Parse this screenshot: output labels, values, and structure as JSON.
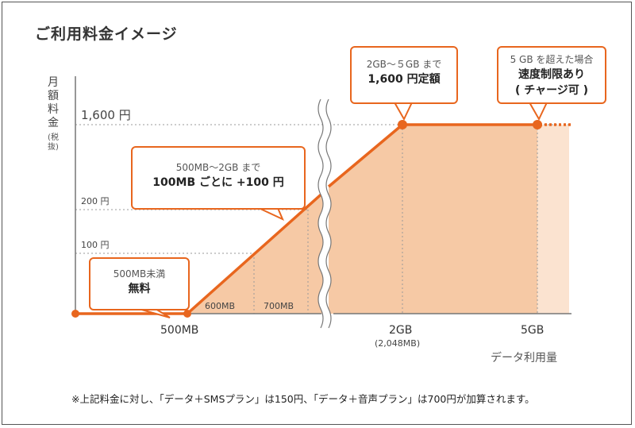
{
  "title": "ご利用料金イメージ",
  "footnote": "※上記料金に対し、「データ＋SMSプラン」は150円、「データ＋音声プラン」は700円が加算されます。",
  "colors": {
    "accent": "#e8661e",
    "fill": "#f6c9a5",
    "fill_light": "#fbe3d0",
    "grid": "#999999"
  },
  "callouts": {
    "free": {
      "line1": "500MB未満",
      "line2": "無料"
    },
    "step": {
      "line1": "500MB～2GB まで",
      "line2": "100MB ごとに +100 円"
    },
    "flat": {
      "line1": "2GB～５GB まで",
      "line2": "1,600 円定額"
    },
    "limit": {
      "line1": "5 GB を超えた場合",
      "line2": "速度制限あり",
      "line3": "( チャージ可 )"
    }
  },
  "chart_data": {
    "type": "line",
    "title": "",
    "xlabel": "データ利用量",
    "ylabel": "月額料金",
    "ylabel_note": "(税抜)",
    "x_tick_labels": [
      "500MB",
      "600MB",
      "700MB",
      "2GB",
      "(2,048MB)",
      "5GB"
    ],
    "y_tick_labels": [
      "1,600 円",
      "200 円",
      "100 円"
    ],
    "series": [
      {
        "x": [
          "0MB",
          "500MB",
          "600MB",
          "700MB",
          "2GB",
          "5GB"
        ],
        "y": [
          0,
          0,
          100,
          200,
          1600,
          1600
        ]
      }
    ],
    "axis_break": "between 700MB and 2GB",
    "grid": "dotted reference lines at y tick values and x tick values"
  }
}
